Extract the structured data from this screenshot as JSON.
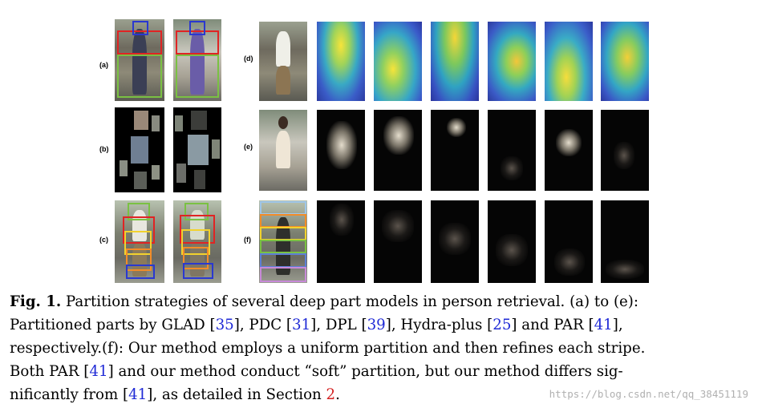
{
  "figure": {
    "panel_labels": [
      "(a)",
      "(b)",
      "(c)",
      "(d)",
      "(e)",
      "(f)"
    ]
  },
  "caption": {
    "lines": [
      [
        {
          "t": "Fig. 1.",
          "s": "fig"
        },
        {
          "t": " Partition strategies of several deep part models in person retrieval. (a) to (e):",
          "s": ""
        }
      ],
      [
        {
          "t": "Partitioned parts by GLAD [",
          "s": ""
        },
        {
          "t": "35",
          "s": "ref"
        },
        {
          "t": "], PDC [",
          "s": ""
        },
        {
          "t": "31",
          "s": "ref"
        },
        {
          "t": "], DPL [",
          "s": ""
        },
        {
          "t": "39",
          "s": "ref"
        },
        {
          "t": "], Hydra-plus [",
          "s": ""
        },
        {
          "t": "25",
          "s": "ref"
        },
        {
          "t": "] and PAR [",
          "s": ""
        },
        {
          "t": "41",
          "s": "ref"
        },
        {
          "t": "],",
          "s": ""
        }
      ],
      [
        {
          "t": "respectively.(f): Our method employs a uniform partition and then refines each stripe.",
          "s": ""
        }
      ],
      [
        {
          "t": "Both PAR [",
          "s": ""
        },
        {
          "t": "41",
          "s": "ref"
        },
        {
          "t": "] and our method conduct “soft” partition, but our method differs sig-",
          "s": ""
        }
      ],
      [
        {
          "t": "nificantly from [",
          "s": ""
        },
        {
          "t": "41",
          "s": "ref"
        },
        {
          "t": "], as detailed in Section ",
          "s": ""
        },
        {
          "t": "2",
          "s": "sec"
        },
        {
          "t": ".",
          "s": ""
        }
      ]
    ]
  },
  "watermark": "https://blog.csdn.net/qq_38451119"
}
